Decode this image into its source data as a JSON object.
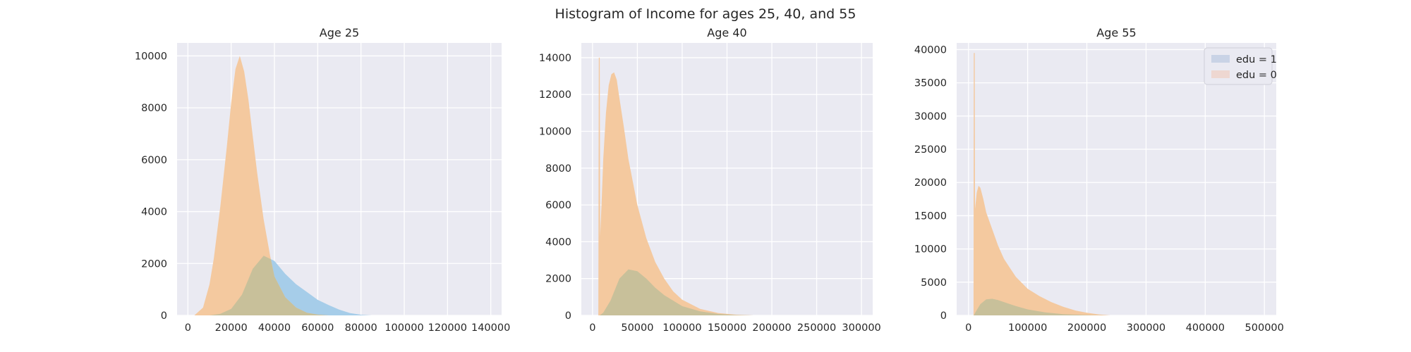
{
  "figure": {
    "title": "Histogram of Income for ages 25, 40, and 55",
    "background": "#ffffff"
  },
  "style": {
    "axes_facecolor": "#eaeaf2",
    "grid_color": "#ffffff",
    "edu1_fill": "#a6cde9",
    "edu0_fill": "#f4c99f",
    "overlap_fill": "#c8c09a",
    "legend_edu1_color": "#c9d3e6",
    "legend_edu0_color": "#eed7d1"
  },
  "legend": {
    "placement": "top-right of Age 55 panel",
    "items": [
      {
        "key": "edu1",
        "label": "edu = 1"
      },
      {
        "key": "edu0",
        "label": "edu = 0"
      }
    ]
  },
  "chart_data": [
    {
      "type": "histogram",
      "title": "Age 25",
      "xlabel": "",
      "ylabel": "",
      "xlim": [
        -5000,
        145000
      ],
      "ylim": [
        0,
        10500
      ],
      "xticks": [
        0,
        20000,
        40000,
        60000,
        80000,
        100000,
        120000,
        140000
      ],
      "yticks": [
        0,
        2000,
        4000,
        6000,
        8000,
        10000
      ],
      "grid": true,
      "series": [
        {
          "name": "edu = 1",
          "key": "edu1",
          "points": [
            [
              10000,
              0
            ],
            [
              15000,
              60
            ],
            [
              20000,
              250
            ],
            [
              25000,
              800
            ],
            [
              30000,
              1800
            ],
            [
              35000,
              2300
            ],
            [
              40000,
              2100
            ],
            [
              45000,
              1600
            ],
            [
              50000,
              1200
            ],
            [
              55000,
              900
            ],
            [
              60000,
              600
            ],
            [
              65000,
              400
            ],
            [
              70000,
              220
            ],
            [
              75000,
              90
            ],
            [
              80000,
              25
            ],
            [
              85000,
              0
            ]
          ]
        },
        {
          "name": "edu = 0",
          "key": "edu0",
          "points": [
            [
              3000,
              0
            ],
            [
              7000,
              300
            ],
            [
              10000,
              1200
            ],
            [
              12000,
              2200
            ],
            [
              15000,
              4200
            ],
            [
              18000,
              6500
            ],
            [
              20000,
              8200
            ],
            [
              22000,
              9500
            ],
            [
              24000,
              10000
            ],
            [
              26000,
              9400
            ],
            [
              28000,
              8300
            ],
            [
              30000,
              6900
            ],
            [
              32000,
              5500
            ],
            [
              35000,
              3700
            ],
            [
              38000,
              2300
            ],
            [
              40000,
              1500
            ],
            [
              45000,
              700
            ],
            [
              50000,
              300
            ],
            [
              55000,
              100
            ],
            [
              60000,
              30
            ],
            [
              65000,
              0
            ]
          ]
        }
      ]
    },
    {
      "type": "histogram",
      "title": "Age 40",
      "xlabel": "",
      "ylabel": "",
      "xlim": [
        -12500,
        312500
      ],
      "ylim": [
        0,
        14800
      ],
      "xticks": [
        0,
        50000,
        100000,
        150000,
        200000,
        250000,
        300000
      ],
      "yticks": [
        0,
        2000,
        4000,
        6000,
        8000,
        10000,
        12000,
        14000
      ],
      "grid": true,
      "series": [
        {
          "name": "edu = 1",
          "key": "edu1",
          "points": [
            [
              8000,
              0
            ],
            [
              12000,
              150
            ],
            [
              20000,
              800
            ],
            [
              30000,
              2000
            ],
            [
              40000,
              2500
            ],
            [
              50000,
              2400
            ],
            [
              60000,
              2000
            ],
            [
              70000,
              1500
            ],
            [
              80000,
              1100
            ],
            [
              100000,
              500
            ],
            [
              120000,
              220
            ],
            [
              140000,
              80
            ],
            [
              160000,
              20
            ],
            [
              180000,
              0
            ]
          ]
        },
        {
          "name": "edu = 0",
          "key": "edu0",
          "points": [
            [
              6500,
              0
            ],
            [
              7000,
              14000
            ],
            [
              8000,
              14000
            ],
            [
              8500,
              4300
            ],
            [
              10000,
              6000
            ],
            [
              12000,
              8500
            ],
            [
              15000,
              11000
            ],
            [
              18000,
              12500
            ],
            [
              21000,
              13100
            ],
            [
              24000,
              13200
            ],
            [
              27000,
              12800
            ],
            [
              30000,
              11800
            ],
            [
              35000,
              10200
            ],
            [
              40000,
              8500
            ],
            [
              50000,
              6000
            ],
            [
              60000,
              4200
            ],
            [
              70000,
              2900
            ],
            [
              80000,
              2000
            ],
            [
              90000,
              1300
            ],
            [
              100000,
              850
            ],
            [
              120000,
              350
            ],
            [
              140000,
              130
            ],
            [
              160000,
              40
            ],
            [
              180000,
              0
            ]
          ]
        }
      ]
    },
    {
      "type": "histogram",
      "title": "Age 55",
      "xlabel": "",
      "ylabel": "",
      "xlim": [
        -20000,
        520000
      ],
      "ylim": [
        0,
        41000
      ],
      "xticks": [
        0,
        100000,
        200000,
        300000,
        400000,
        500000
      ],
      "yticks": [
        0,
        5000,
        10000,
        15000,
        20000,
        25000,
        30000,
        35000,
        40000
      ],
      "grid": true,
      "series": [
        {
          "name": "edu = 1",
          "key": "edu1",
          "points": [
            [
              9000,
              0
            ],
            [
              12000,
              500
            ],
            [
              20000,
              1700
            ],
            [
              30000,
              2400
            ],
            [
              40000,
              2500
            ],
            [
              50000,
              2300
            ],
            [
              60000,
              2000
            ],
            [
              80000,
              1400
            ],
            [
              100000,
              900
            ],
            [
              130000,
              450
            ],
            [
              160000,
              180
            ],
            [
              200000,
              50
            ],
            [
              230000,
              0
            ]
          ]
        },
        {
          "name": "edu = 0",
          "key": "edu0",
          "points": [
            [
              8500,
              0
            ],
            [
              9000,
              39500
            ],
            [
              10500,
              39500
            ],
            [
              11000,
              16000
            ],
            [
              14000,
              18500
            ],
            [
              17000,
              19500
            ],
            [
              20000,
              19200
            ],
            [
              25000,
              17500
            ],
            [
              30000,
              15500
            ],
            [
              40000,
              13000
            ],
            [
              50000,
              10500
            ],
            [
              60000,
              8500
            ],
            [
              80000,
              5800
            ],
            [
              100000,
              4000
            ],
            [
              120000,
              2900
            ],
            [
              140000,
              2000
            ],
            [
              160000,
              1300
            ],
            [
              180000,
              750
            ],
            [
              200000,
              400
            ],
            [
              220000,
              150
            ],
            [
              240000,
              0
            ]
          ]
        }
      ]
    }
  ]
}
